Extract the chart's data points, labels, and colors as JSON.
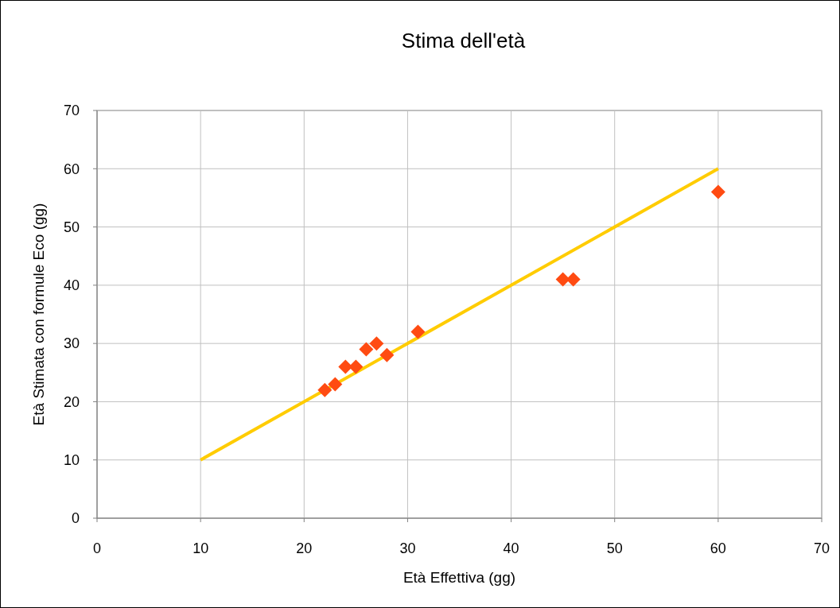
{
  "chart_data": {
    "type": "scatter",
    "title": "Stima dell'età",
    "xlabel": "Età Effettiva (gg)",
    "ylabel": "Età Stimata con formule Eco (gg)",
    "xlim": [
      0,
      70
    ],
    "xticks": [
      0,
      10,
      20,
      30,
      40,
      50,
      60,
      70
    ],
    "ylim": [
      0,
      70
    ],
    "yticks": [
      0,
      10,
      20,
      30,
      40,
      50,
      60,
      70
    ],
    "grid": true,
    "marker": "diamond",
    "series": [
      {
        "type": "line",
        "color": "#ffcc00",
        "x": [
          10,
          60
        ],
        "values": [
          10,
          60
        ],
        "marker": "none"
      },
      {
        "color": "#ff4b12",
        "x": [
          22,
          23,
          24,
          25,
          26,
          27,
          28,
          31,
          45,
          46,
          60
        ],
        "values": [
          22,
          23,
          26,
          26,
          29,
          30,
          28,
          32,
          41,
          41,
          56
        ]
      }
    ]
  }
}
